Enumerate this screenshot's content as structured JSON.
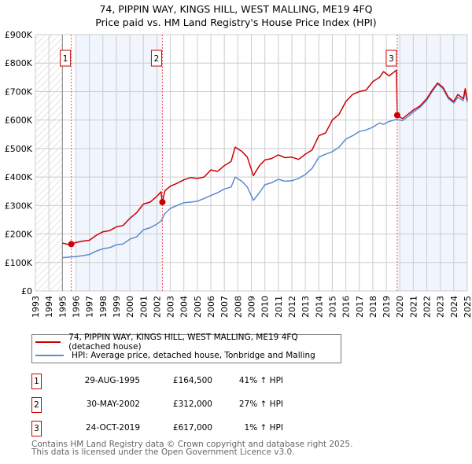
{
  "chart_data": {
    "type": "line",
    "title": "74, PIPPIN WAY, KINGS HILL, WEST MALLING, ME19 4FQ",
    "subtitle": "Price paid vs. HM Land Registry's House Price Index (HPI)",
    "xlabel": "",
    "ylabel": "",
    "xlim": [
      1993,
      2025
    ],
    "ylim": [
      0,
      900000
    ],
    "y_ticks": [
      0,
      100000,
      200000,
      300000,
      400000,
      500000,
      600000,
      700000,
      800000,
      900000
    ],
    "y_tick_labels": [
      "£0",
      "£100K",
      "£200K",
      "£300K",
      "£400K",
      "£500K",
      "£600K",
      "£700K",
      "£800K",
      "£900K"
    ],
    "x_ticks": [
      1993,
      1994,
      1995,
      1996,
      1997,
      1998,
      1999,
      2000,
      2001,
      2002,
      2003,
      2004,
      2005,
      2006,
      2007,
      2008,
      2009,
      2010,
      2011,
      2012,
      2013,
      2014,
      2015,
      2016,
      2017,
      2018,
      2019,
      2020,
      2021,
      2022,
      2023,
      2024,
      2025
    ],
    "x_tick_labels": [
      "1993",
      "1994",
      "1995",
      "1996",
      "1997",
      "1998",
      "1999",
      "2000",
      "2001",
      "2002",
      "2003",
      "2004",
      "2005",
      "2006",
      "2007",
      "2008",
      "2009",
      "2010",
      "2011",
      "2012",
      "2013",
      "2014",
      "2015",
      "2016",
      "2017",
      "2018",
      "2019",
      "2020",
      "2021",
      "2022",
      "2023",
      "2024",
      "2025"
    ],
    "grid": true,
    "hatched_range": [
      1993,
      1995
    ],
    "shaded_ranges": [
      [
        1996,
        2002.41
      ],
      [
        2019.81,
        2025
      ]
    ],
    "series": [
      {
        "name": "74, PIPPIN WAY, KINGS HILL, WEST MALLING, ME19 4FQ (detached house)",
        "color": "#cc0000",
        "x": [
          1995.0,
          1995.5,
          1996.0,
          1996.5,
          1997.0,
          1997.5,
          1998.0,
          1998.5,
          1999.0,
          1999.5,
          2000.0,
          2000.5,
          2001.0,
          2001.5,
          2002.0,
          2002.3,
          2002.41,
          2002.6,
          2003.0,
          2003.5,
          2004.0,
          2004.5,
          2005.0,
          2005.5,
          2006.0,
          2006.5,
          2007.0,
          2007.5,
          2007.8,
          2008.3,
          2008.7,
          2009.15,
          2009.6,
          2010.0,
          2010.5,
          2011.0,
          2011.5,
          2012.0,
          2012.5,
          2013.0,
          2013.5,
          2014.0,
          2014.5,
          2015.0,
          2015.5,
          2016.0,
          2016.5,
          2017.0,
          2017.5,
          2018.0,
          2018.5,
          2018.8,
          2019.2,
          2019.75,
          2019.81,
          2020.2,
          2020.6,
          2021.0,
          2021.5,
          2022.0,
          2022.4,
          2022.8,
          2023.2,
          2023.6,
          2024.0,
          2024.3,
          2024.7,
          2024.85,
          2025.0
        ],
        "y": [
          168000,
          163000,
          170000,
          175000,
          178000,
          195000,
          208000,
          212000,
          225000,
          230000,
          255000,
          275000,
          305000,
          312000,
          332000,
          348000,
          312000,
          352000,
          368000,
          378000,
          390000,
          398000,
          395000,
          400000,
          425000,
          420000,
          440000,
          455000,
          505000,
          490000,
          470000,
          405000,
          440000,
          460000,
          465000,
          478000,
          468000,
          470000,
          462000,
          480000,
          495000,
          545000,
          555000,
          600000,
          620000,
          665000,
          690000,
          700000,
          705000,
          735000,
          750000,
          770000,
          755000,
          775000,
          617000,
          605000,
          620000,
          635000,
          650000,
          675000,
          705000,
          730000,
          715000,
          680000,
          665000,
          690000,
          675000,
          710000,
          670000
        ]
      },
      {
        "name": "HPI: Average price, detached house, Tonbridge and Malling",
        "color": "#5b8bd0",
        "x": [
          1995.0,
          1995.5,
          1996.0,
          1996.5,
          1997.0,
          1997.5,
          1998.0,
          1998.5,
          1999.0,
          1999.5,
          2000.0,
          2000.5,
          2001.0,
          2001.5,
          2002.0,
          2002.3,
          2002.6,
          2003.0,
          2003.5,
          2004.0,
          2004.5,
          2005.0,
          2005.5,
          2006.0,
          2006.5,
          2007.0,
          2007.5,
          2007.8,
          2008.3,
          2008.7,
          2009.15,
          2009.6,
          2010.0,
          2010.5,
          2011.0,
          2011.5,
          2012.0,
          2012.5,
          2013.0,
          2013.5,
          2014.0,
          2014.5,
          2015.0,
          2015.5,
          2016.0,
          2016.5,
          2017.0,
          2017.5,
          2018.0,
          2018.5,
          2018.8,
          2019.2,
          2019.75,
          2020.2,
          2020.6,
          2021.0,
          2021.5,
          2022.0,
          2022.4,
          2022.8,
          2023.2,
          2023.6,
          2024.0,
          2024.3,
          2024.7,
          2024.85,
          2025.0
        ],
        "y": [
          117000,
          119000,
          121000,
          124000,
          128000,
          140000,
          148000,
          152000,
          162000,
          165000,
          182000,
          190000,
          215000,
          222000,
          235000,
          245000,
          272000,
          290000,
          300000,
          310000,
          312000,
          315000,
          325000,
          335000,
          345000,
          358000,
          365000,
          400000,
          385000,
          365000,
          318000,
          345000,
          373000,
          380000,
          392000,
          385000,
          387000,
          395000,
          409000,
          430000,
          470000,
          480000,
          489000,
          505000,
          533000,
          545000,
          560000,
          565000,
          575000,
          590000,
          585000,
          595000,
          602000,
          598000,
          612000,
          628000,
          645000,
          670000,
          700000,
          727000,
          710000,
          675000,
          660000,
          680000,
          668000,
          700000,
          662000
        ]
      }
    ],
    "sales": [
      {
        "label": "1",
        "x": 1995.66,
        "y": 164500
      },
      {
        "label": "2",
        "x": 2002.41,
        "y": 312000
      },
      {
        "label": "3",
        "x": 2019.81,
        "y": 617000
      }
    ]
  },
  "legend": {
    "property": "74, PIPPIN WAY, KINGS HILL, WEST MALLING, ME19 4FQ (detached house)",
    "hpi": "HPI: Average price, detached house, Tonbridge and Malling"
  },
  "transactions": [
    {
      "num": "1",
      "date": "29-AUG-1995",
      "price": "£164,500",
      "hpi": "41% ↑ HPI"
    },
    {
      "num": "2",
      "date": "30-MAY-2002",
      "price": "£312,000",
      "hpi": "27% ↑ HPI"
    },
    {
      "num": "3",
      "date": "24-OCT-2019",
      "price": "£617,000",
      "hpi": "1% ↑ HPI"
    }
  ],
  "footer": {
    "line1": "Contains HM Land Registry data © Crown copyright and database right 2025.",
    "line2": "This data is licensed under the Open Government Licence v3.0."
  }
}
